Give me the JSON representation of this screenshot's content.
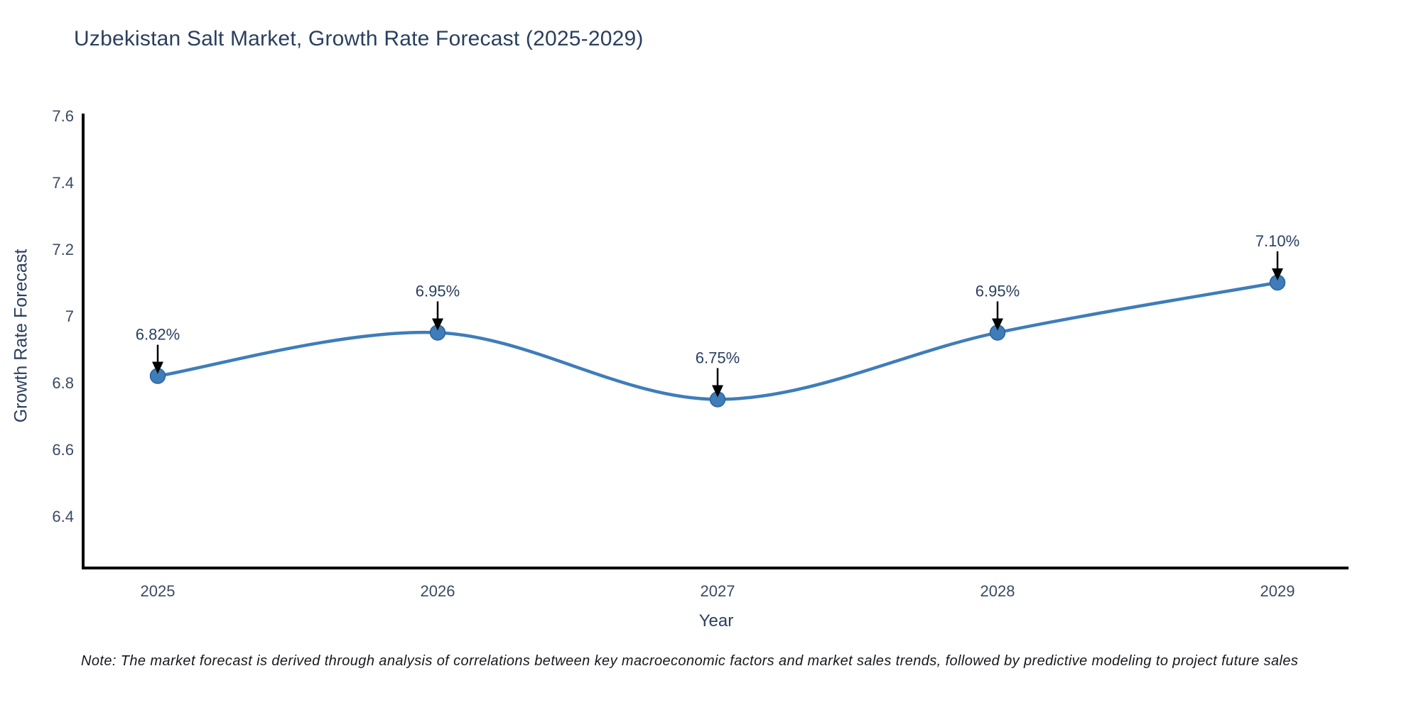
{
  "title": "Uzbekistan Salt Market, Growth Rate Forecast (2025-2029)",
  "note": "Note: The market forecast is derived through analysis of correlations between key macroeconomic factors and market sales trends, followed by predictive modeling to project future sales",
  "chart_data": {
    "type": "line",
    "line_shape": "spline",
    "title": "Uzbekistan Salt Market, Growth Rate Forecast (2025-2029)",
    "xlabel": "Year",
    "ylabel": "Growth Rate Forecast",
    "categories": [
      "2025",
      "2026",
      "2027",
      "2028",
      "2029"
    ],
    "values": [
      6.82,
      6.95,
      6.75,
      6.95,
      7.1
    ],
    "point_labels": [
      "6.82%",
      "6.95%",
      "6.75%",
      "6.95%",
      "7.10%"
    ],
    "ytick_values": [
      7.6,
      7.4,
      7.2,
      7.0,
      6.8,
      6.6,
      6.4
    ],
    "ytick_labels": [
      "7.6",
      "7.4",
      "7.2",
      "7",
      "6.8",
      "6.6",
      "6.4"
    ],
    "ylim": [
      6.2445,
      7.6064
    ],
    "grid": false,
    "legend": false,
    "colors": {
      "line": "#3e7db9",
      "marker_fill": "#3e7db9",
      "marker_edge": "#2d639c",
      "axis": "#000000",
      "tick_text": "#3b4a63",
      "annotation_text": "#2a3f5f",
      "annotation_arrow": "#000000",
      "title_text": "#2a3f5f",
      "background": "#ffffff"
    }
  }
}
